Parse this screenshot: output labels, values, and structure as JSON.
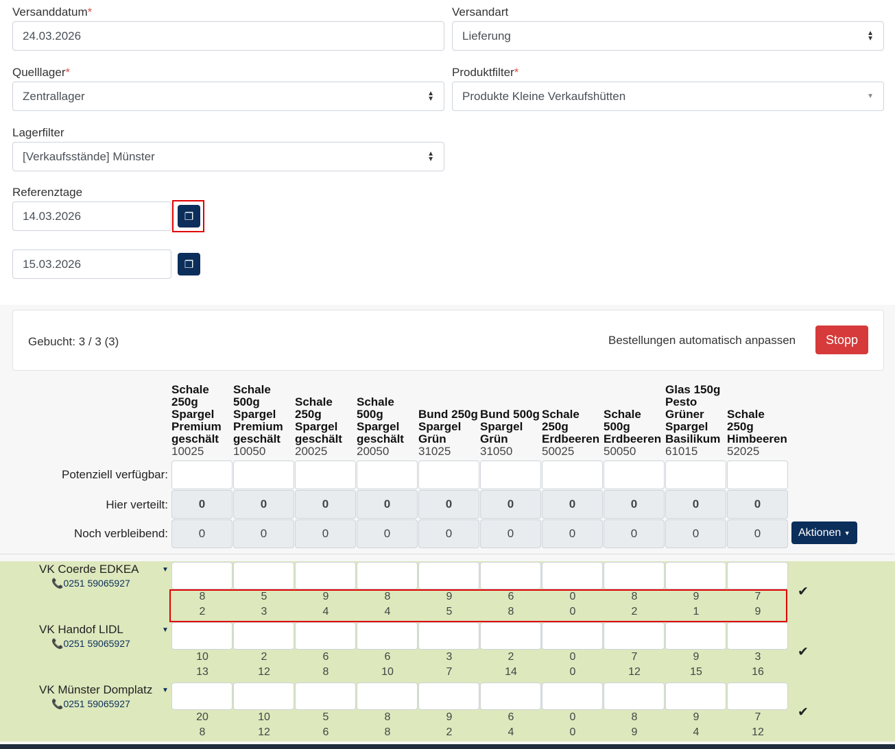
{
  "form": {
    "versanddatum": {
      "label": "Versanddatum",
      "value": "24.03.2026",
      "required": "*"
    },
    "versandart": {
      "label": "Versandart",
      "value": "Lieferung"
    },
    "quelllager": {
      "label": "Quelllager",
      "value": "Zentrallager",
      "required": "*"
    },
    "produktfilter": {
      "label": "Produktfilter",
      "value": "Produkte Kleine Verkaufshütten",
      "required": "*"
    },
    "lagerfilter": {
      "label": "Lagerfilter",
      "value": "[Verkaufsstände] Münster"
    },
    "referenztage": {
      "label": "Referenztage",
      "dates": [
        "14.03.2026",
        "15.03.2026"
      ]
    }
  },
  "card": {
    "gebucht": "Gebucht: 3 / 3 (3)",
    "auto_label": "Bestellungen automatisch anpassen",
    "stop_label": "Stopp"
  },
  "products": [
    {
      "name": "Schale 250g Spargel Premium geschält",
      "code": "10025"
    },
    {
      "name": "Schale 500g Spargel Premium geschält",
      "code": "10050"
    },
    {
      "name": "Schale 250g Spargel geschält",
      "code": "20025"
    },
    {
      "name": "Schale 500g Spargel geschält",
      "code": "20050"
    },
    {
      "name": "Bund 250g Spargel Grün",
      "code": "31025"
    },
    {
      "name": "Bund 500g Spargel Grün",
      "code": "31050"
    },
    {
      "name": "Schale 250g Erdbeeren",
      "code": "50025"
    },
    {
      "name": "Schale 500g Erdbeeren",
      "code": "50050"
    },
    {
      "name": "Glas 150g Pesto Grüner Spargel Basilikum",
      "code": "61015"
    },
    {
      "name": "Schale 250g Himbeeren",
      "code": "52025"
    }
  ],
  "summary": {
    "potenziell_label": "Potenziell verfügbar:",
    "verteilt_label": "Hier verteilt:",
    "verbleibend_label": "Noch verbleibend:",
    "verteilt": [
      "0",
      "0",
      "0",
      "0",
      "0",
      "0",
      "0",
      "0",
      "0",
      "0"
    ],
    "verbleibend": [
      "0",
      "0",
      "0",
      "0",
      "0",
      "0",
      "0",
      "0",
      "0",
      "0"
    ],
    "aktionen_label": "Aktionen"
  },
  "stores": [
    {
      "name": "VK Coerde EDKEA",
      "phone": "0251 59065927",
      "row1": [
        "8",
        "5",
        "9",
        "8",
        "9",
        "6",
        "0",
        "8",
        "9",
        "7"
      ],
      "row2": [
        "2",
        "3",
        "4",
        "4",
        "5",
        "8",
        "0",
        "2",
        "1",
        "9"
      ]
    },
    {
      "name": "VK Handof LIDL",
      "phone": "0251 59065927",
      "row1": [
        "10",
        "2",
        "6",
        "6",
        "3",
        "2",
        "0",
        "7",
        "9",
        "3"
      ],
      "row2": [
        "13",
        "12",
        "8",
        "10",
        "7",
        "14",
        "0",
        "12",
        "15",
        "16"
      ]
    },
    {
      "name": "VK Münster Domplatz",
      "phone": "0251 59065927",
      "row1": [
        "20",
        "10",
        "5",
        "8",
        "9",
        "6",
        "0",
        "8",
        "9",
        "7"
      ],
      "row2": [
        "8",
        "12",
        "6",
        "8",
        "2",
        "4",
        "0",
        "9",
        "4",
        "12"
      ]
    }
  ],
  "colors": {
    "primary": "#0b2e5a",
    "danger": "#d63a3a",
    "store_bg": "#dde8bd",
    "highlight": "#e00000"
  }
}
